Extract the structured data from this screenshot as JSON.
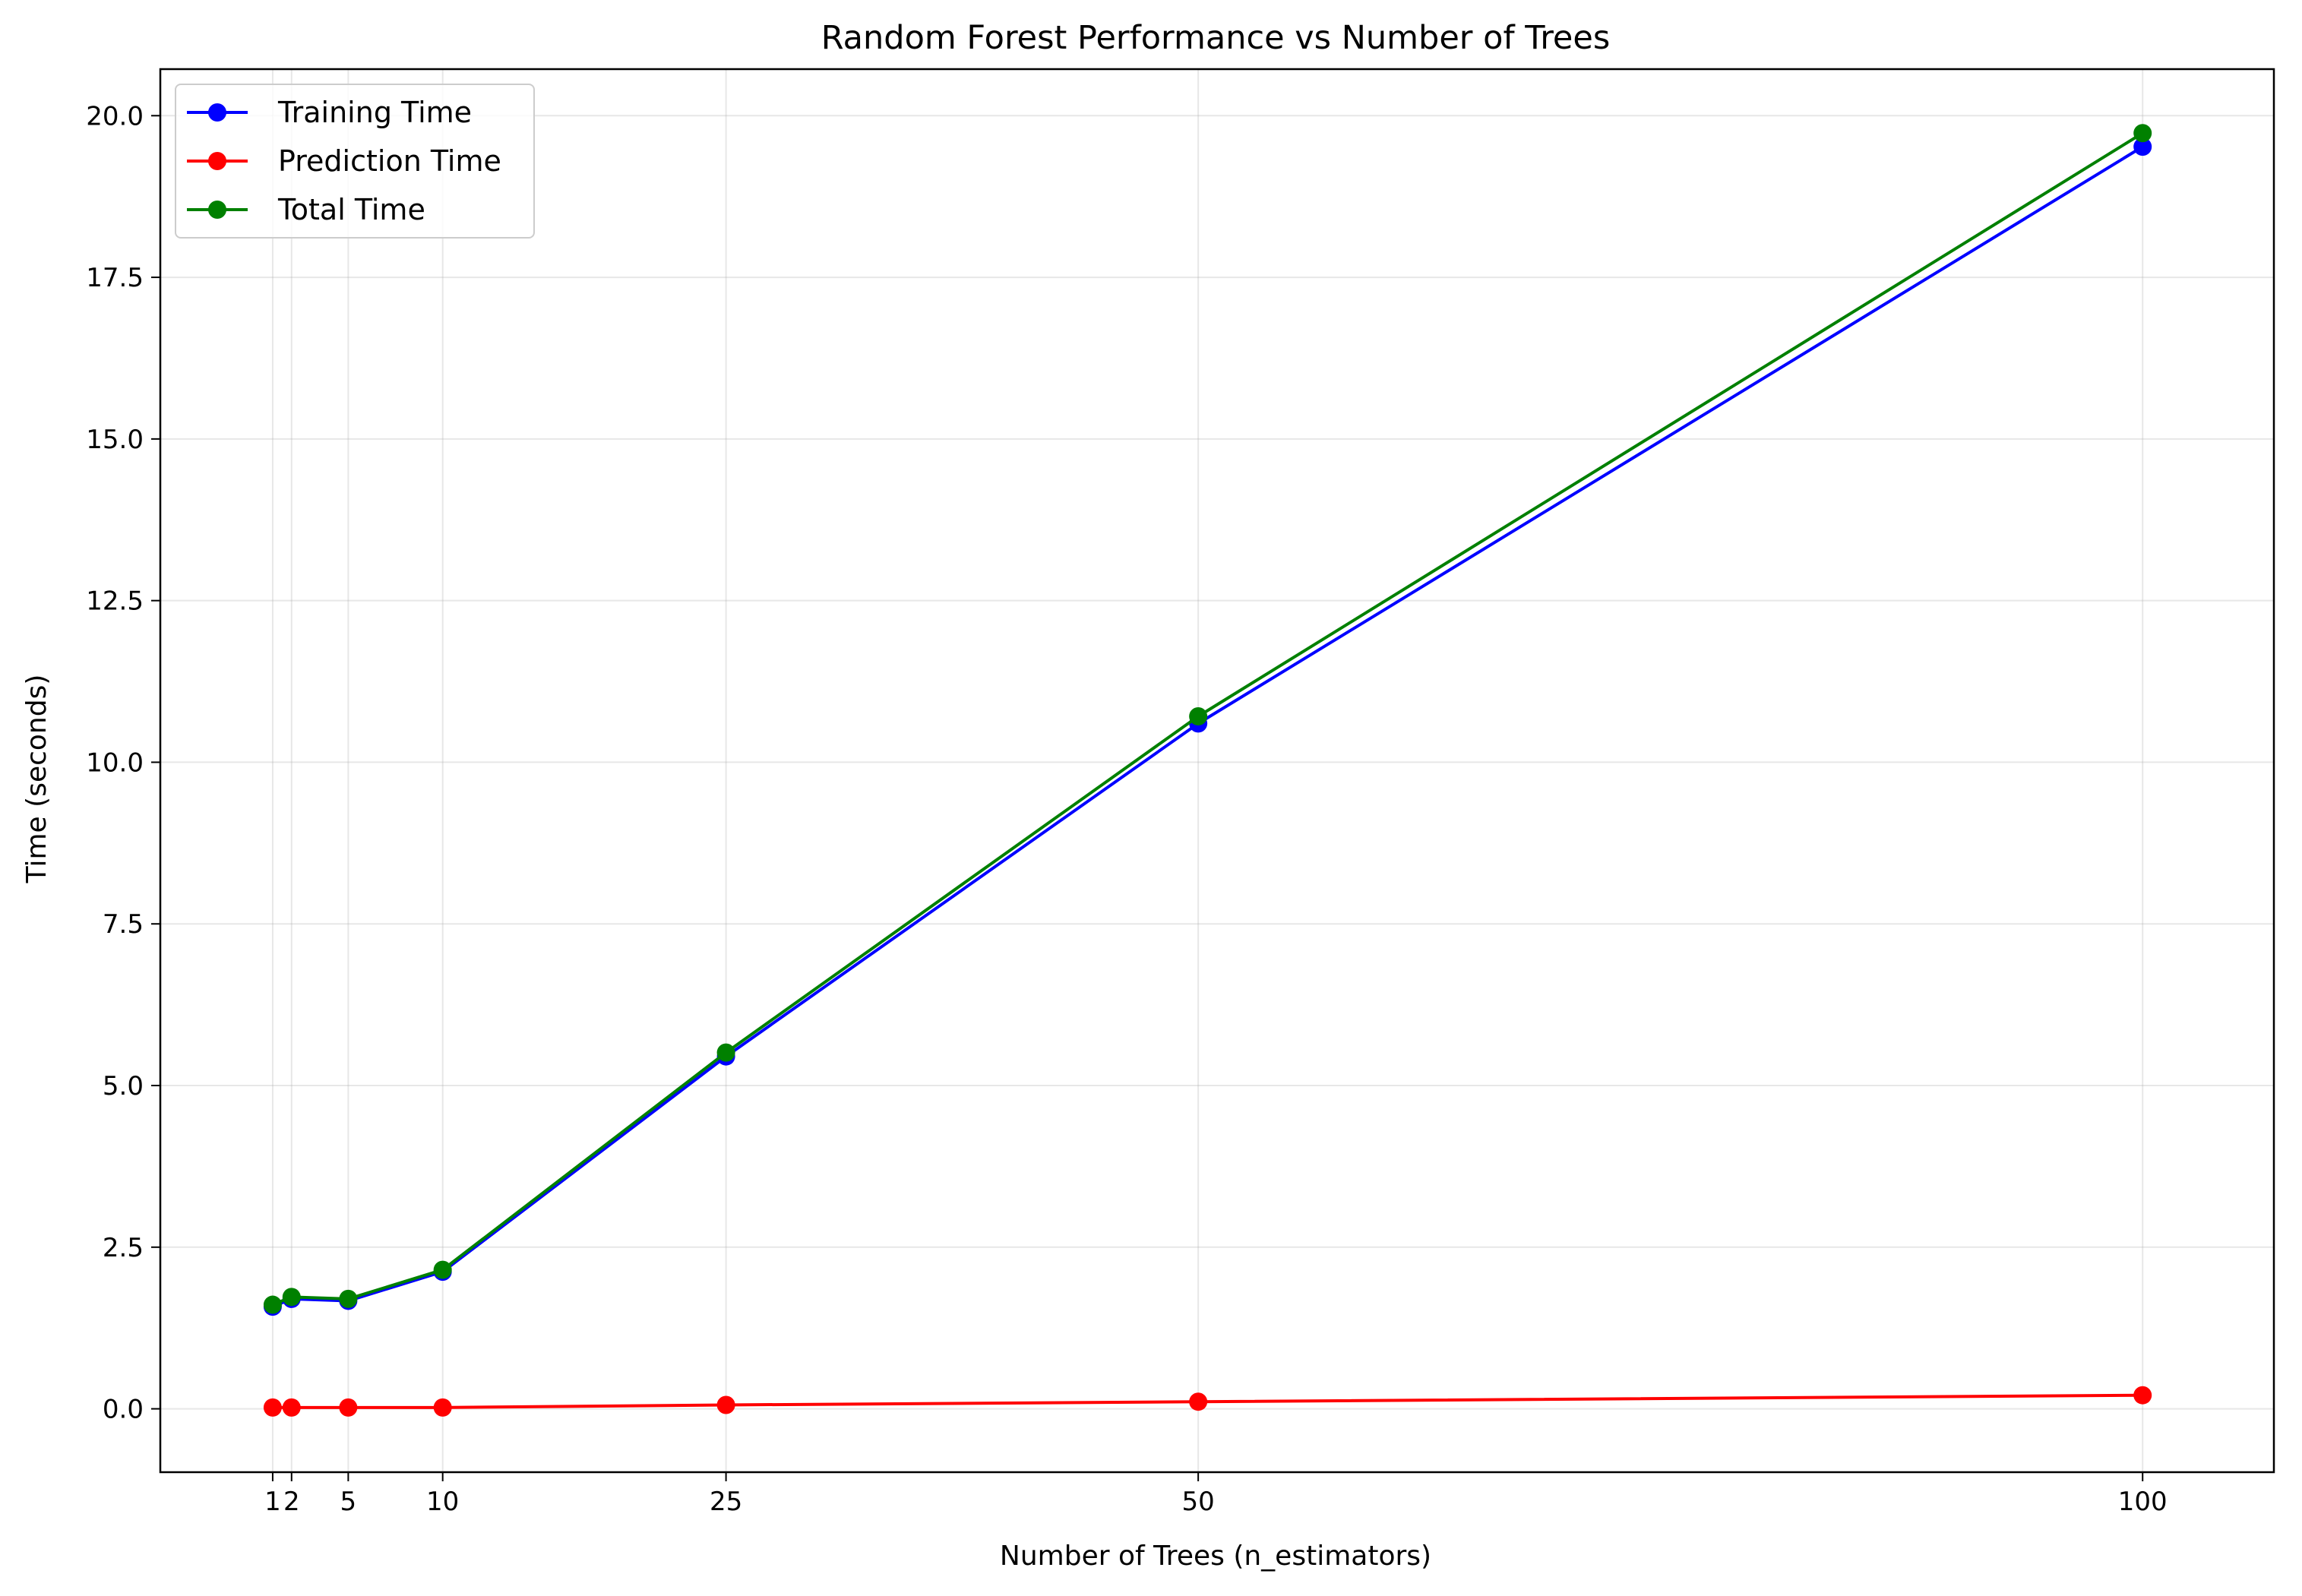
{
  "chart_data": {
    "type": "line",
    "title": "Random Forest Performance vs Number of Trees",
    "xlabel": "Number of Trees (n_estimators)",
    "ylabel": "Time (seconds)",
    "x": [
      1,
      2,
      5,
      10,
      25,
      50,
      100
    ],
    "xticks": [
      1,
      2,
      5,
      10,
      25,
      50,
      100
    ],
    "xtick_labels": [
      "1",
      "2",
      "5",
      "10",
      "25",
      "50",
      "100"
    ],
    "yticks": [
      0.0,
      2.5,
      5.0,
      7.5,
      10.0,
      12.5,
      15.0,
      17.5,
      20.0
    ],
    "ytick_labels": [
      "0.0",
      "2.5",
      "5.0",
      "7.5",
      "10.0",
      "12.5",
      "15.0",
      "17.5",
      "20.0"
    ],
    "xlim": [
      -4.95,
      106.95
    ],
    "ylim": [
      -0.98,
      20.72
    ],
    "grid": true,
    "legend_position": "upper-left",
    "series": [
      {
        "name": "Training Time",
        "color": "#0000ff",
        "values": [
          1.58,
          1.7,
          1.67,
          2.12,
          5.45,
          10.6,
          19.52
        ]
      },
      {
        "name": "Prediction Time",
        "color": "#ff0000",
        "values": [
          0.02,
          0.02,
          0.02,
          0.02,
          0.06,
          0.11,
          0.21
        ]
      },
      {
        "name": "Total Time",
        "color": "#008000",
        "values": [
          1.61,
          1.73,
          1.7,
          2.15,
          5.51,
          10.71,
          19.73
        ]
      }
    ]
  }
}
